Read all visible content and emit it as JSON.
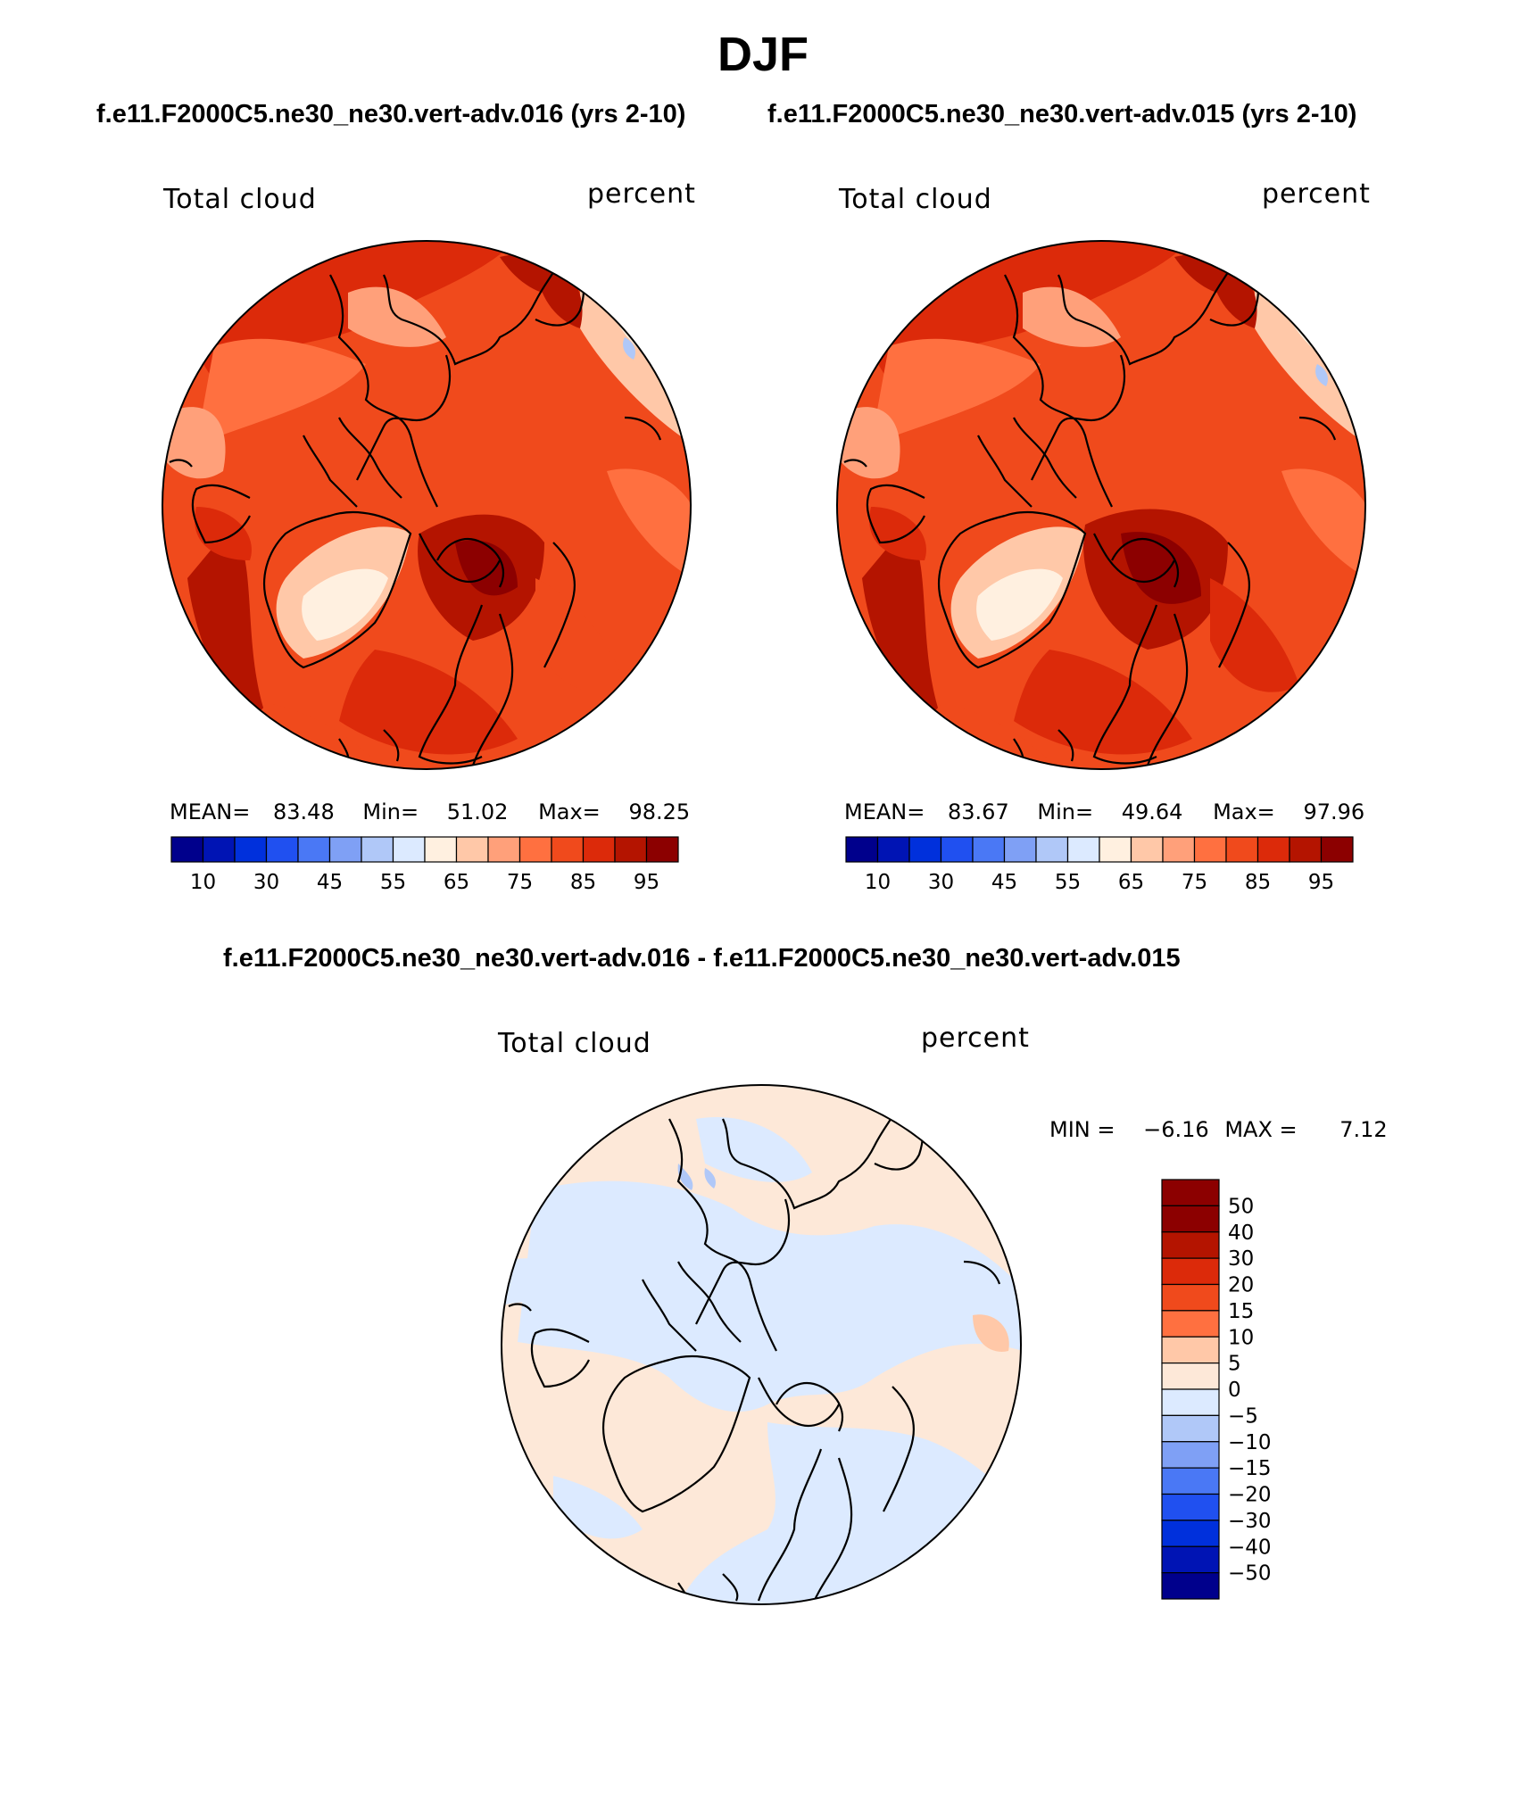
{
  "title": "DJF",
  "panels": [
    {
      "case_title": "f.e11.F2000C5.ne30_ne30.vert-adv.016 (yrs 2-10)",
      "left_label": "Total cloud",
      "right_label": "percent",
      "stats": {
        "mean_label": "MEAN=",
        "mean": "83.48",
        "min_label": "Min=",
        "min": "51.02",
        "max_label": "Max=",
        "max": "98.25"
      }
    },
    {
      "case_title": "f.e11.F2000C5.ne30_ne30.vert-adv.015 (yrs 2-10)",
      "left_label": "Total cloud",
      "right_label": "percent",
      "stats": {
        "mean_label": "MEAN=",
        "mean": "83.67",
        "min_label": "Min=",
        "min": "49.64",
        "max_label": "Max=",
        "max": "97.96"
      }
    }
  ],
  "diff_panel": {
    "title": "f.e11.F2000C5.ne30_ne30.vert-adv.016 - f.e11.F2000C5.ne30_ne30.vert-adv.015",
    "left_label": "Total cloud",
    "right_label": "percent",
    "minmax": {
      "min_label": "MIN =",
      "min": "−6.16",
      "max_label": "MAX =",
      "max": "7.12"
    }
  },
  "legend_abs": {
    "colors": [
      "#00008c",
      "#0014b4",
      "#0030dc",
      "#2050f0",
      "#4a78f5",
      "#7fa0f5",
      "#b0c8f8",
      "#dceaff",
      "#fff0e0",
      "#ffc8a8",
      "#ffa07a",
      "#ff7040",
      "#f04a1c",
      "#dc2a0a",
      "#b41400",
      "#8c0000"
    ],
    "tick_labels": [
      "10",
      "30",
      "45",
      "55",
      "65",
      "75",
      "85",
      "95"
    ]
  },
  "legend_diff": {
    "colors": [
      "#8c0000",
      "#b41400",
      "#dc2a0a",
      "#f04a1c",
      "#ff7040",
      "#ffc8a8",
      "#fde8d8",
      "#dceaff",
      "#b0c8f8",
      "#7fa0f5",
      "#4a78f5",
      "#2050f0",
      "#0030dc",
      "#0014b4",
      "#00008c"
    ],
    "tick_labels": [
      "50",
      "40",
      "30",
      "20",
      "15",
      "10",
      "5",
      "0",
      "−5",
      "−10",
      "−15",
      "−20",
      "−30",
      "−40",
      "−50"
    ]
  }
}
